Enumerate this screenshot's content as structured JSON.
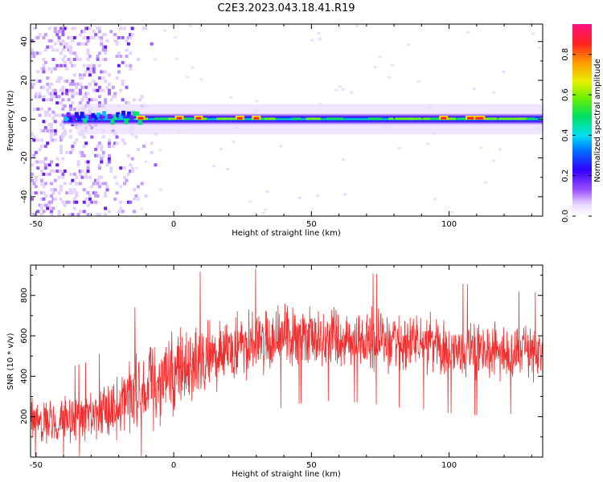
{
  "figure_title": "C2E3.2023.043.18.41.R19",
  "colors": {
    "snr_line": "#f03030",
    "axes": "#000000"
  },
  "chart_data": [
    {
      "type": "heatmap",
      "title": "",
      "xlabel": "Height of straight line (km)",
      "ylabel": "Frequency (Hz)",
      "xlim": [
        -52,
        134
      ],
      "ylim": [
        -50,
        49
      ],
      "xticks": [
        -50,
        0,
        50,
        100
      ],
      "yticks": [
        -40,
        -20,
        0,
        20,
        40
      ],
      "grid": false,
      "colormap": "rainbow (violet-low to red-high)",
      "colorbar": {
        "label": "Normalized spectral amplitude",
        "range": [
          0.0,
          0.95
        ],
        "ticks": [
          0.0,
          0.2,
          0.4,
          0.6,
          0.8
        ]
      },
      "features": {
        "main_band_center_hz": 0,
        "main_band_half_width_hz": 3,
        "noise_region_x": [
          -52,
          -15
        ],
        "high_amplitude_spots_x": [
          -12,
          2,
          9,
          24,
          30,
          98,
          108,
          111
        ]
      }
    },
    {
      "type": "line",
      "title": "",
      "xlabel": "Height of straight line (km)",
      "ylabel": "SNR (10 * v/v)",
      "xlim": [
        -52,
        134
      ],
      "ylim": [
        0,
        950
      ],
      "xticks": [
        -50,
        0,
        50,
        100
      ],
      "yticks": [
        200,
        400,
        600,
        800
      ],
      "grid": false,
      "series": [
        {
          "mean_profile": {
            "x": [
              -52,
              -40,
              -30,
              -20,
              -15,
              -10,
              0,
              10,
              20,
              30,
              40,
              50,
              60,
              70,
              80,
              90,
              100,
              110,
              120,
              134
            ],
            "y": [
              180,
              190,
              210,
              250,
              300,
              350,
              420,
              480,
              540,
              570,
              590,
              600,
              600,
              590,
              570,
              560,
              540,
              530,
              520,
              510
            ]
          },
          "envelope_half_width": [
            120,
            130,
            140,
            180,
            220,
            260,
            260,
            230,
            200,
            190,
            180,
            170,
            170,
            170,
            170,
            170,
            170,
            170,
            160,
            160
          ]
        }
      ]
    }
  ]
}
